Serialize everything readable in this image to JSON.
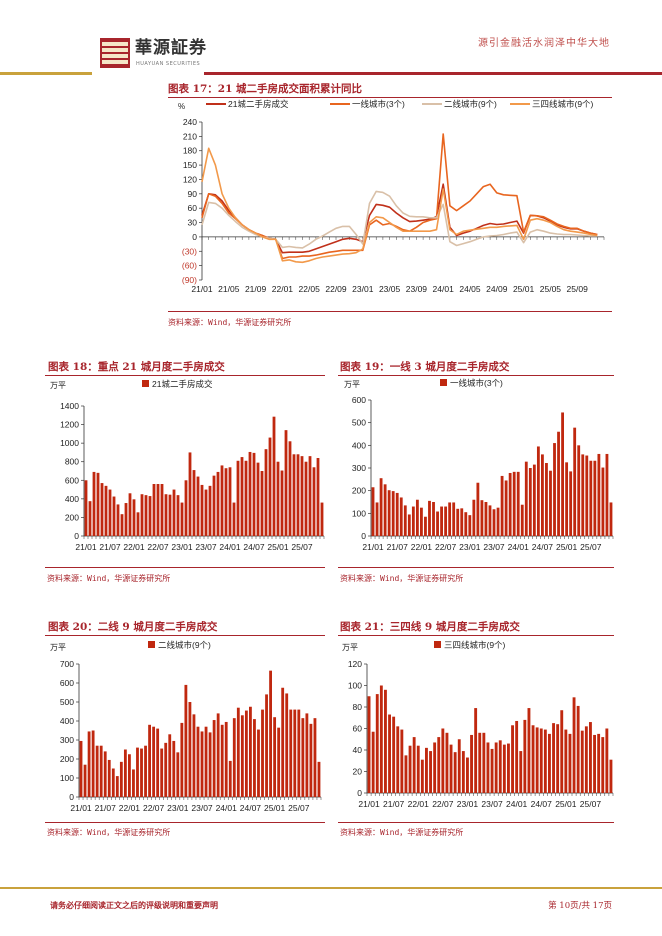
{
  "header": {
    "tagline": "源引金融活水润泽中华大地",
    "logo_text": "華源証券",
    "logo_sub": "HUAYUAN SECURITIES"
  },
  "colors": {
    "brand_red": "#a8252c",
    "gold": "#c9a23c",
    "bar": "#c0280f",
    "s1": "#c0301a",
    "s2": "#e8651f",
    "s3": "#d9c0a8",
    "s4": "#f2994a"
  },
  "source_text": "资料来源：Wind，华源证券研究所",
  "footer": {
    "disclaimer": "请务必仔细阅读正文之后的评级说明和重要声明",
    "page": "第 10页/共 17页"
  },
  "chart_data": [
    {
      "id": "fig17",
      "type": "line",
      "title": "图表 17：21 城二手房成交面积累计同比",
      "ylabel": "%",
      "ylim": [
        -90,
        240
      ],
      "yticks": [
        "240",
        "210",
        "180",
        "150",
        "120",
        "90",
        "60",
        "30",
        "0",
        "(30)",
        "(60)",
        "(90)"
      ],
      "xticks": [
        "21/01",
        "21/05",
        "21/09",
        "22/01",
        "22/05",
        "22/09",
        "23/01",
        "23/05",
        "23/09",
        "24/01",
        "24/05",
        "24/09",
        "25/01",
        "25/05",
        "25/09"
      ],
      "x_start": "21/01",
      "x_end": "25/12",
      "legend": "top",
      "series": [
        {
          "name": "21城二手房成交",
          "color": "#c0301a",
          "values": [
            45,
            90,
            88,
            75,
            55,
            40,
            25,
            15,
            8,
            3,
            -3,
            -5,
            -33,
            -32,
            -32,
            -32,
            -30,
            -25,
            -20,
            -15,
            -10,
            -5,
            -3,
            -5,
            -10,
            45,
            68,
            66,
            62,
            50,
            40,
            32,
            33,
            35,
            37,
            42,
            110,
            20,
            3,
            8,
            12,
            18,
            24,
            28,
            26,
            27,
            30,
            33,
            8,
            45,
            44,
            40,
            33,
            25,
            20,
            17,
            17,
            12,
            8,
            5
          ]
        },
        {
          "name": "一线城市(3个)",
          "color": "#e8651f",
          "values": [
            40,
            90,
            85,
            70,
            50,
            38,
            25,
            15,
            8,
            3,
            -3,
            -5,
            -45,
            -42,
            -42,
            -40,
            -40,
            -38,
            -35,
            -32,
            -30,
            -28,
            -28,
            -28,
            -28,
            25,
            35,
            25,
            28,
            22,
            15,
            12,
            20,
            30,
            35,
            38,
            215,
            65,
            55,
            65,
            75,
            90,
            105,
            110,
            92,
            88,
            87,
            86,
            10,
            45,
            44,
            42,
            35,
            27,
            22,
            18,
            18,
            12,
            8,
            5
          ]
        },
        {
          "name": "二线城市(9个)",
          "color": "#d9c0a8",
          "values": [
            25,
            72,
            70,
            60,
            45,
            32,
            20,
            12,
            5,
            0,
            -3,
            -5,
            -22,
            -20,
            -22,
            -23,
            -15,
            -5,
            2,
            10,
            18,
            22,
            22,
            5,
            -15,
            70,
            95,
            93,
            85,
            65,
            50,
            43,
            42,
            42,
            40,
            40,
            68,
            -10,
            -18,
            -14,
            -10,
            -5,
            0,
            2,
            3,
            5,
            8,
            10,
            -12,
            10,
            15,
            12,
            8,
            6,
            5,
            5,
            4,
            3,
            2,
            2
          ]
        },
        {
          "name": "三四线城市(9个)",
          "color": "#f2994a",
          "values": [
            115,
            185,
            150,
            90,
            60,
            40,
            25,
            15,
            8,
            0,
            -5,
            -5,
            -50,
            -48,
            -52,
            -53,
            -50,
            -45,
            -42,
            -40,
            -38,
            -36,
            -35,
            -33,
            -25,
            30,
            42,
            40,
            30,
            20,
            12,
            12,
            12,
            12,
            12,
            15,
            100,
            15,
            5,
            12,
            14,
            16,
            18,
            20,
            20,
            22,
            23,
            24,
            -5,
            35,
            38,
            35,
            30,
            22,
            15,
            12,
            10,
            8,
            5,
            3
          ]
        }
      ]
    },
    {
      "id": "fig18",
      "type": "bar",
      "title": "图表 18：重点 21 城月度二手房成交",
      "ylabel": "万平",
      "ylim": [
        0,
        1400
      ],
      "yticks": [
        "1400",
        "1200",
        "1000",
        "800",
        "600",
        "400",
        "200",
        "0"
      ],
      "xticks": [
        "21/01",
        "21/07",
        "22/01",
        "22/07",
        "23/01",
        "23/07",
        "24/01",
        "24/07",
        "25/01",
        "25/07"
      ],
      "legend": "top",
      "series": [
        {
          "name": "21城二手房成交",
          "values": [
            600,
            375,
            690,
            680,
            570,
            540,
            500,
            425,
            340,
            235,
            355,
            460,
            395,
            255,
            450,
            440,
            430,
            560,
            560,
            560,
            450,
            445,
            500,
            440,
            360,
            600,
            900,
            710,
            640,
            550,
            500,
            540,
            650,
            690,
            760,
            730,
            740,
            360,
            810,
            850,
            810,
            905,
            895,
            790,
            700,
            935,
            1060,
            1285,
            800,
            705,
            1140,
            1020,
            880,
            880,
            860,
            800,
            860,
            740,
            840,
            360
          ]
        }
      ]
    },
    {
      "id": "fig19",
      "type": "bar",
      "title": "图表 19：一线 3 城月度二手房成交",
      "ylabel": "万平",
      "ylim": [
        0,
        600
      ],
      "yticks": [
        "600",
        "500",
        "400",
        "300",
        "200",
        "100",
        "0"
      ],
      "xticks": [
        "21/01",
        "21/07",
        "22/01",
        "22/07",
        "23/01",
        "23/07",
        "24/01",
        "24/07",
        "25/01",
        "25/07"
      ],
      "legend": "top",
      "series": [
        {
          "name": "一线城市(3个)",
          "values": [
            215,
            148,
            255,
            228,
            202,
            198,
            190,
            170,
            135,
            95,
            130,
            160,
            125,
            85,
            155,
            150,
            108,
            130,
            130,
            148,
            148,
            120,
            122,
            105,
            92,
            160,
            235,
            158,
            150,
            135,
            118,
            125,
            265,
            245,
            278,
            283,
            283,
            138,
            328,
            300,
            315,
            395,
            360,
            322,
            288,
            410,
            460,
            545,
            325,
            285,
            478,
            400,
            360,
            355,
            332,
            332,
            362,
            302,
            362,
            148
          ]
        }
      ]
    },
    {
      "id": "fig20",
      "type": "bar",
      "title": "图表 20：二线 9 城月度二手房成交",
      "ylabel": "万平",
      "ylim": [
        0,
        700
      ],
      "yticks": [
        "700",
        "600",
        "500",
        "400",
        "300",
        "200",
        "100",
        "0"
      ],
      "xticks": [
        "21/01",
        "21/07",
        "22/01",
        "22/07",
        "23/01",
        "23/07",
        "24/01",
        "24/07",
        "25/01",
        "25/07"
      ],
      "legend": "top",
      "series": [
        {
          "name": "二线城市(9个)",
          "values": [
            295,
            170,
            345,
            350,
            270,
            270,
            240,
            195,
            150,
            110,
            185,
            250,
            225,
            145,
            260,
            255,
            270,
            380,
            370,
            360,
            255,
            285,
            330,
            295,
            235,
            390,
            590,
            500,
            435,
            370,
            345,
            370,
            340,
            405,
            440,
            380,
            395,
            190,
            415,
            470,
            430,
            455,
            475,
            410,
            355,
            460,
            540,
            665,
            420,
            365,
            575,
            545,
            460,
            460,
            460,
            415,
            440,
            385,
            415,
            185
          ]
        }
      ]
    },
    {
      "id": "fig21",
      "type": "bar",
      "title": "图表 21：三四线 9 城月度二手房成交",
      "ylabel": "万平",
      "ylim": [
        0,
        120
      ],
      "yticks": [
        "120",
        "100",
        "80",
        "60",
        "40",
        "20",
        "0"
      ],
      "xticks": [
        "21/01",
        "21/07",
        "22/01",
        "22/07",
        "23/01",
        "23/07",
        "24/01",
        "24/07",
        "25/01",
        "25/07"
      ],
      "legend": "top",
      "series": [
        {
          "name": "三四线城市(9个)",
          "values": [
            90,
            57,
            92,
            100,
            96,
            73,
            71,
            62,
            59,
            35,
            44,
            52,
            44,
            31,
            42,
            39,
            47,
            52,
            60,
            56,
            45,
            38,
            50,
            39,
            33,
            54,
            79,
            56,
            56,
            47,
            41,
            47,
            49,
            45,
            46,
            63,
            67,
            39,
            68,
            79,
            63,
            61,
            60,
            59,
            55,
            65,
            64,
            77,
            59,
            55,
            89,
            81,
            58,
            62,
            66,
            54,
            55,
            52,
            60,
            31
          ]
        }
      ]
    }
  ]
}
